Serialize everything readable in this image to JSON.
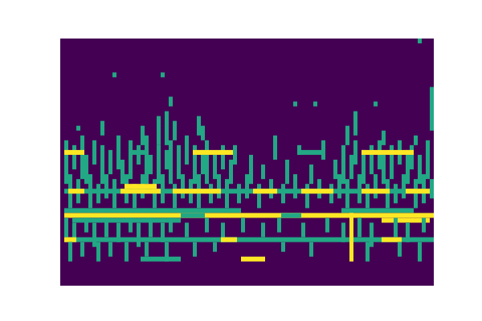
{
  "chart_data": {
    "type": "heatmap",
    "color": "viridis",
    "value_range": [
      0,
      1
    ],
    "xlim": [
      0,
      93
    ],
    "ylim": [
      0,
      51
    ],
    "tick_labels": false,
    "cells": [
      [
        0,
        93,
        0,
        51,
        0
      ],
      [
        89,
        90,
        0,
        1,
        0.6
      ],
      [
        13,
        14,
        7,
        8,
        0.6
      ],
      [
        25,
        26,
        7,
        8,
        0.6
      ],
      [
        27,
        28,
        12,
        14,
        0.6
      ],
      [
        58,
        59,
        13,
        14,
        0.6
      ],
      [
        63,
        64,
        13,
        14,
        0.6
      ],
      [
        78,
        79,
        13,
        14,
        0.6
      ],
      [
        92,
        93,
        10,
        19,
        0.6
      ],
      [
        10,
        11,
        17,
        20,
        0.6
      ],
      [
        4,
        5,
        18,
        19,
        0.6
      ],
      [
        24,
        25,
        16,
        22,
        0.6
      ],
      [
        26,
        27,
        15,
        22,
        0.6
      ],
      [
        28,
        29,
        17,
        21,
        0.6
      ],
      [
        34,
        35,
        16,
        20,
        0.6
      ],
      [
        35,
        36,
        18,
        21,
        0.6
      ],
      [
        20,
        21,
        18,
        22,
        0.6
      ],
      [
        71,
        72,
        18,
        22,
        0.6
      ],
      [
        73,
        74,
        15,
        20,
        0.6
      ],
      [
        80,
        81,
        19,
        22,
        0.6
      ],
      [
        88,
        89,
        20,
        22,
        0.6
      ],
      [
        1,
        2,
        21,
        30,
        0.6
      ],
      [
        3,
        4,
        22,
        27,
        0.6
      ],
      [
        5,
        6,
        20,
        29,
        0.6
      ],
      [
        6,
        7,
        24,
        30,
        0.6
      ],
      [
        8,
        9,
        21,
        26,
        0.6
      ],
      [
        10,
        11,
        22,
        30,
        0.6
      ],
      [
        12,
        13,
        23,
        28,
        0.6
      ],
      [
        14,
        15,
        20,
        27,
        0.6
      ],
      [
        15,
        16,
        25,
        30,
        0.6
      ],
      [
        17,
        18,
        21,
        29,
        0.6
      ],
      [
        19,
        20,
        22,
        26,
        0.6
      ],
      [
        21,
        22,
        20,
        30,
        0.6
      ],
      [
        22,
        23,
        24,
        28,
        0.6
      ],
      [
        24,
        25,
        22,
        30,
        0.6
      ],
      [
        26,
        27,
        23,
        27,
        0.6
      ],
      [
        27,
        28,
        21,
        30,
        0.6
      ],
      [
        29,
        30,
        22,
        29,
        0.6
      ],
      [
        31,
        32,
        20,
        26,
        0.6
      ],
      [
        33,
        34,
        22,
        30,
        0.6
      ],
      [
        35,
        36,
        23,
        28,
        0.6
      ],
      [
        36,
        37,
        21,
        30,
        0.6
      ],
      [
        38,
        39,
        24,
        29,
        0.6
      ],
      [
        40,
        41,
        22,
        27,
        0.6
      ],
      [
        42,
        43,
        25,
        30,
        0.6
      ],
      [
        43,
        44,
        22,
        26,
        0.6
      ],
      [
        47,
        48,
        24,
        30,
        0.6
      ],
      [
        50,
        51,
        26,
        29,
        0.6
      ],
      [
        53,
        54,
        20,
        25,
        0.6
      ],
      [
        56,
        57,
        25,
        30,
        0.6
      ],
      [
        59,
        60,
        22,
        24,
        0.6
      ],
      [
        62,
        63,
        26,
        30,
        0.6
      ],
      [
        65,
        66,
        21,
        25,
        0.6
      ],
      [
        68,
        69,
        25,
        29,
        0.6
      ],
      [
        70,
        71,
        22,
        30,
        0.6
      ],
      [
        72,
        73,
        24,
        29,
        0.6
      ],
      [
        73,
        74,
        21,
        26,
        0.6
      ],
      [
        75,
        76,
        23,
        30,
        0.6
      ],
      [
        77,
        78,
        22,
        28,
        0.6
      ],
      [
        79,
        80,
        21,
        27,
        0.6
      ],
      [
        80,
        81,
        24,
        30,
        0.6
      ],
      [
        82,
        83,
        22,
        29,
        0.6
      ],
      [
        84,
        85,
        21,
        26,
        0.6
      ],
      [
        86,
        87,
        23,
        30,
        0.6
      ],
      [
        87,
        88,
        22,
        27,
        0.6
      ],
      [
        89,
        90,
        24,
        30,
        0.6
      ],
      [
        91,
        92,
        21,
        29,
        0.6
      ],
      [
        1,
        6,
        23,
        24,
        1
      ],
      [
        18,
        22,
        23,
        24,
        0.6
      ],
      [
        33,
        43,
        23,
        24,
        1
      ],
      [
        59,
        65,
        23,
        24,
        0.6
      ],
      [
        75,
        88,
        23,
        24,
        1
      ],
      [
        2,
        3,
        28,
        35,
        0.6
      ],
      [
        4,
        5,
        29,
        34,
        0.6
      ],
      [
        7,
        8,
        28,
        35,
        0.6
      ],
      [
        9,
        10,
        30,
        34,
        0.6
      ],
      [
        11,
        12,
        28,
        33,
        0.6
      ],
      [
        13,
        14,
        29,
        35,
        0.6
      ],
      [
        16,
        17,
        28,
        34,
        0.6
      ],
      [
        18,
        19,
        30,
        35,
        0.6
      ],
      [
        20,
        21,
        28,
        33,
        0.6
      ],
      [
        23,
        24,
        29,
        35,
        0.6
      ],
      [
        25,
        26,
        28,
        34,
        0.6
      ],
      [
        28,
        29,
        30,
        35,
        0.6
      ],
      [
        30,
        31,
        28,
        33,
        0.6
      ],
      [
        32,
        33,
        29,
        34,
        0.6
      ],
      [
        34,
        35,
        28,
        35,
        0.6
      ],
      [
        37,
        38,
        30,
        34,
        0.6
      ],
      [
        39,
        40,
        28,
        33,
        0.6
      ],
      [
        41,
        42,
        29,
        35,
        0.6
      ],
      [
        44,
        45,
        30,
        34,
        0.6
      ],
      [
        46,
        47,
        28,
        33,
        0.6
      ],
      [
        49,
        50,
        30,
        35,
        0.6
      ],
      [
        52,
        53,
        29,
        33,
        0.6
      ],
      [
        55,
        56,
        30,
        34,
        0.6
      ],
      [
        58,
        59,
        28,
        33,
        0.6
      ],
      [
        61,
        62,
        30,
        35,
        0.6
      ],
      [
        64,
        65,
        29,
        33,
        0.6
      ],
      [
        67,
        68,
        30,
        34,
        0.6
      ],
      [
        69,
        70,
        28,
        33,
        0.6
      ],
      [
        71,
        72,
        29,
        35,
        0.6
      ],
      [
        74,
        75,
        28,
        34,
        0.6
      ],
      [
        76,
        77,
        30,
        35,
        0.6
      ],
      [
        78,
        79,
        28,
        33,
        0.6
      ],
      [
        81,
        82,
        29,
        35,
        0.6
      ],
      [
        83,
        84,
        30,
        34,
        0.6
      ],
      [
        85,
        86,
        28,
        33,
        0.6
      ],
      [
        88,
        89,
        29,
        35,
        0.6
      ],
      [
        90,
        91,
        28,
        34,
        0.6
      ],
      [
        92,
        93,
        29,
        33,
        0.6
      ],
      [
        1,
        93,
        31,
        32,
        0.6
      ],
      [
        2,
        6,
        31,
        32,
        1
      ],
      [
        15,
        25,
        31,
        32,
        1
      ],
      [
        28,
        40,
        31,
        32,
        1
      ],
      [
        48,
        54,
        31,
        32,
        1
      ],
      [
        60,
        68,
        31,
        32,
        1
      ],
      [
        75,
        82,
        31,
        32,
        1
      ],
      [
        86,
        92,
        31,
        32,
        1
      ],
      [
        16,
        24,
        30,
        31,
        1
      ],
      [
        1,
        45,
        35,
        36,
        0.6
      ],
      [
        70,
        88,
        35,
        36,
        0.6
      ],
      [
        1,
        93,
        36,
        37,
        1
      ],
      [
        30,
        36,
        36,
        37,
        0.6
      ],
      [
        55,
        60,
        36,
        37,
        0.6
      ],
      [
        3,
        30,
        37,
        38,
        0.6
      ],
      [
        80,
        92,
        37,
        38,
        1
      ],
      [
        1,
        2,
        37,
        41,
        0.6
      ],
      [
        3,
        4,
        38,
        42,
        0.6
      ],
      [
        6,
        7,
        37,
        40,
        0.6
      ],
      [
        8,
        9,
        38,
        43,
        0.6
      ],
      [
        11,
        12,
        37,
        41,
        0.6
      ],
      [
        14,
        15,
        38,
        42,
        0.6
      ],
      [
        17,
        18,
        37,
        40,
        0.6
      ],
      [
        19,
        20,
        38,
        43,
        0.6
      ],
      [
        22,
        23,
        37,
        41,
        0.6
      ],
      [
        25,
        26,
        38,
        42,
        0.6
      ],
      [
        27,
        28,
        37,
        40,
        0.6
      ],
      [
        31,
        32,
        38,
        41,
        0.6
      ],
      [
        36,
        37,
        37,
        40,
        0.6
      ],
      [
        40,
        41,
        38,
        42,
        0.6
      ],
      [
        45,
        46,
        37,
        40,
        0.6
      ],
      [
        50,
        51,
        38,
        41,
        0.6
      ],
      [
        54,
        55,
        37,
        40,
        0.6
      ],
      [
        60,
        61,
        38,
        41,
        0.6
      ],
      [
        66,
        67,
        37,
        40,
        0.6
      ],
      [
        70,
        71,
        38,
        42,
        0.6
      ],
      [
        74,
        75,
        37,
        41,
        0.6
      ],
      [
        77,
        78,
        38,
        43,
        0.6
      ],
      [
        83,
        84,
        37,
        41,
        0.6
      ],
      [
        86,
        87,
        38,
        42,
        0.6
      ],
      [
        90,
        91,
        37,
        40,
        0.6
      ],
      [
        1,
        93,
        41,
        42,
        0.6
      ],
      [
        1,
        4,
        41,
        42,
        1
      ],
      [
        40,
        44,
        41,
        42,
        1
      ],
      [
        80,
        85,
        41,
        42,
        1
      ],
      [
        2,
        3,
        42,
        46,
        0.6
      ],
      [
        5,
        6,
        42,
        45,
        0.6
      ],
      [
        9,
        10,
        42,
        46,
        0.6
      ],
      [
        12,
        13,
        42,
        45,
        0.6
      ],
      [
        16,
        17,
        42,
        46,
        0.6
      ],
      [
        21,
        22,
        42,
        45,
        0.6
      ],
      [
        26,
        27,
        42,
        46,
        0.6
      ],
      [
        33,
        34,
        42,
        45,
        0.6
      ],
      [
        38,
        39,
        42,
        44,
        0.6
      ],
      [
        55,
        56,
        42,
        44,
        0.6
      ],
      [
        62,
        63,
        42,
        45,
        0.6
      ],
      [
        76,
        77,
        42,
        46,
        0.6
      ],
      [
        84,
        85,
        42,
        45,
        0.6
      ],
      [
        89,
        90,
        42,
        46,
        0.6
      ],
      [
        20,
        30,
        45,
        46,
        0.6
      ],
      [
        45,
        51,
        45,
        46,
        1
      ],
      [
        72,
        73,
        36,
        46,
        1
      ]
    ]
  }
}
